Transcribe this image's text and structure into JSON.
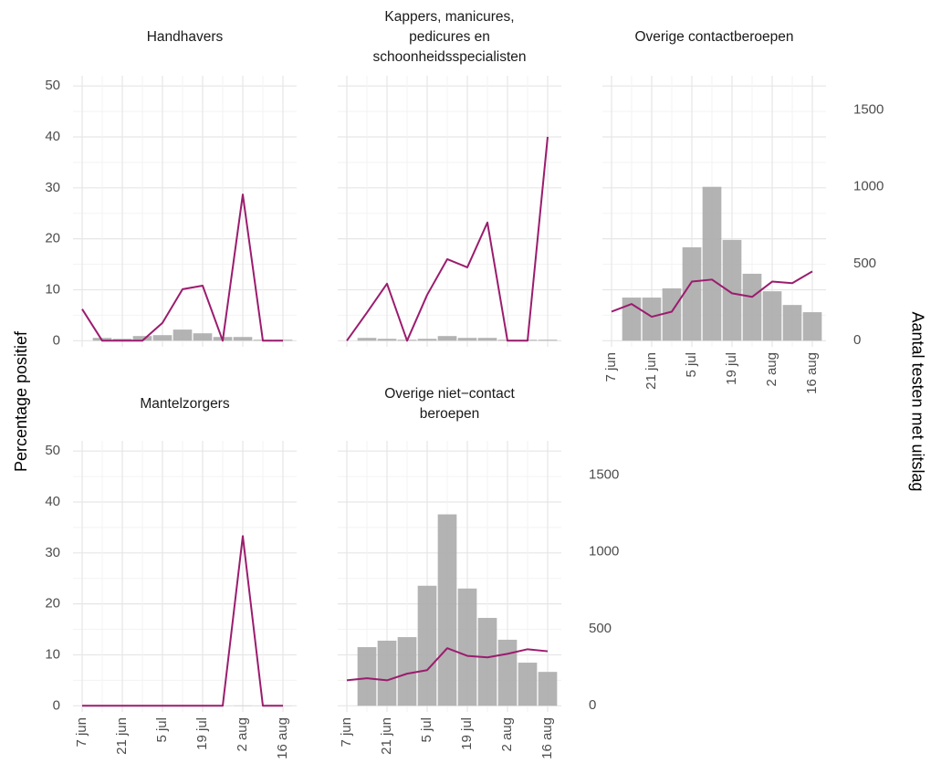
{
  "chart_data": [
    {
      "type": "combo",
      "title": [
        "Handhavers"
      ],
      "series": [
        {
          "kind": "bar",
          "axis": "y2",
          "color": "#ababab",
          "values": [
            null,
            18,
            12,
            30,
            36,
            72,
            48,
            24,
            24,
            6,
            6
          ]
        },
        {
          "kind": "line",
          "color": "#9b1c6e",
          "values": [
            6.2,
            0,
            0,
            0,
            3.5,
            10.1,
            10.8,
            0,
            28.7,
            0,
            0
          ]
        }
      ]
    },
    {
      "type": "combo",
      "title": [
        "Kappers, manicures,",
        "pedicures en",
        "schoonheidsspecialisten"
      ],
      "series": [
        {
          "kind": "bar",
          "axis": "y2",
          "color": "#ababab",
          "values": [
            null,
            18,
            12,
            6,
            12,
            30,
            18,
            18,
            6,
            6,
            6
          ]
        },
        {
          "kind": "line",
          "color": "#9b1c6e",
          "values": [
            0,
            5.5,
            11.2,
            0,
            9,
            16,
            14.4,
            23.2,
            0,
            0,
            40
          ]
        }
      ]
    },
    {
      "type": "combo",
      "title": [
        "Overige contactberoepen"
      ],
      "series": [
        {
          "kind": "bar",
          "axis": "y2",
          "color": "#ababab",
          "values": [
            null,
            280,
            280,
            340,
            607,
            1000,
            655,
            435,
            321,
            232,
            185
          ]
        },
        {
          "kind": "line",
          "color": "#9b1c6e",
          "values": [
            5.7,
            7.2,
            4.7,
            5.7,
            11.6,
            12.0,
            9.3,
            8.6,
            11.6,
            11.3,
            13.6
          ]
        }
      ]
    },
    {
      "type": "combo",
      "title": [
        "Mantelzorgers"
      ],
      "series": [
        {
          "kind": "bar",
          "axis": "y2",
          "color": "#ababab",
          "values": [
            null,
            1,
            1,
            1,
            1,
            1,
            1,
            1,
            2,
            1,
            1
          ]
        },
        {
          "kind": "line",
          "color": "#9b1c6e",
          "values": [
            0,
            0,
            0,
            0,
            0,
            0,
            0,
            0,
            33.3,
            0,
            0
          ]
        }
      ]
    },
    {
      "type": "combo",
      "title": [
        "Overige niet−contact",
        "beroepen"
      ],
      "series": [
        {
          "kind": "bar",
          "axis": "y2",
          "color": "#ababab",
          "values": [
            null,
            381,
            423,
            446,
            780,
            1244,
            762,
            571,
            429,
            280,
            220
          ]
        },
        {
          "kind": "line",
          "color": "#9b1c6e",
          "values": [
            5.0,
            5.4,
            5.0,
            6.3,
            7.0,
            11.3,
            9.8,
            9.5,
            10.2,
            11.1,
            10.7
          ]
        }
      ]
    }
  ],
  "shared": {
    "categories": [
      "7 jun",
      null,
      "21 jun",
      null,
      "5 jul",
      null,
      "19 jul",
      null,
      "2 aug",
      null,
      "16 aug"
    ],
    "ylim": [
      -1.2,
      52
    ],
    "yticks": [
      0,
      10,
      20,
      30,
      40,
      50
    ],
    "y2lim": [
      -40,
      1722
    ],
    "y2ticks": [
      0,
      500,
      1000,
      1500
    ],
    "y_label": "Percentage positief",
    "y2_label": "Aantal testen met uitslag"
  }
}
